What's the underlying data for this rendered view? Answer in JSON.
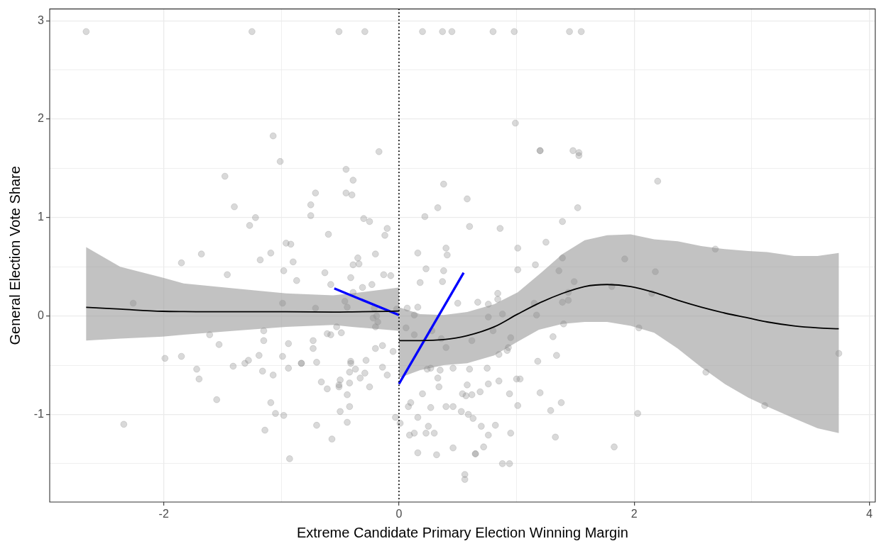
{
  "chart_data": {
    "type": "scatter",
    "xlabel": "Extreme Candidate Primary Election Winning Margin",
    "ylabel": "General Election Vote Share",
    "xlim": [
      -2.97,
      4.05
    ],
    "ylim": [
      -1.89,
      3.12
    ],
    "xticks": [
      -2,
      {
        "value": -1,
        "label": null
      },
      0,
      {
        "value": 1,
        "label": null
      },
      2,
      {
        "value": 3,
        "label": null
      },
      4
    ],
    "yticks": [
      {
        "value": -1.5,
        "label": null
      },
      -1,
      {
        "value": -0.5,
        "label": null
      },
      0,
      {
        "value": 0.5,
        "label": null
      },
      1,
      {
        "value": 1.5,
        "label": null
      },
      2,
      {
        "value": 2.5,
        "label": null
      },
      3
    ],
    "grid": true,
    "legend": false,
    "marker": "circle",
    "ref_lines": [
      {
        "axis": "x",
        "value": 0,
        "color": "#000000",
        "line_style": "dotted"
      }
    ],
    "series": [
      {
        "type": "scatter",
        "color": "#d9d9d9",
        "x": [
          -2.66,
          -1.25,
          -0.51,
          -0.29,
          0.2,
          0.37,
          0.45,
          0.8,
          0.98,
          1.45,
          1.55,
          -1.07,
          -1.01,
          -1.48,
          -0.71,
          -0.75,
          -0.75,
          -1.4,
          -1.22,
          -1.27,
          -0.6,
          -0.96,
          -0.92,
          -1.68,
          -1.09,
          -1.85,
          -1.18,
          -0.9,
          0.99,
          -0.17,
          1.2,
          1.2,
          1.48,
          1.53,
          1.53,
          -0.45,
          -0.39,
          -0.45,
          -0.4,
          0.38,
          0.58,
          0.33,
          1.52,
          0.22,
          -0.3,
          -0.25,
          1.39,
          0.6,
          0.86,
          -0.1,
          -0.12,
          1.25,
          0.4,
          1.01,
          -0.2,
          0.16,
          0.41,
          -0.35,
          -0.34,
          -0.39,
          1.39,
          1.16,
          2.2,
          1.92,
          2.69,
          2.18,
          1.81,
          2.15,
          2.04,
          3.74,
          2.61,
          3.11,
          2.03,
          1.83,
          -1.46,
          -0.98,
          -0.87,
          -0.63,
          -0.58,
          -2.26,
          -0.99,
          -0.71,
          -1.61,
          -1.15,
          -1.15,
          -1.53,
          -0.94,
          -0.73,
          -0.73,
          -0.61,
          -0.58,
          -1.99,
          -1.85,
          -1.19,
          -0.99,
          -1.28,
          -1.31,
          -0.83,
          -0.83,
          -0.7,
          -1.41,
          -1.72,
          -1.7,
          -1.16,
          -1.07,
          -0.94,
          -0.66,
          -0.61,
          -1.55,
          -1.09,
          -1.05,
          -0.98,
          -2.34,
          -1.14,
          -0.7,
          -0.57,
          -0.93,
          -0.41,
          -0.13,
          -0.07,
          -0.31,
          -0.23,
          -0.39,
          -0.46,
          -0.44,
          -0.21,
          -0.02,
          -0.19,
          -0.22,
          -0.18,
          -0.2,
          -0.53,
          -0.49,
          -0.2,
          -0.14,
          -0.05,
          -0.41,
          -0.41,
          -0.28,
          -0.14,
          -0.37,
          -0.42,
          -0.29,
          -0.1,
          -0.33,
          -0.5,
          -0.51,
          -0.51,
          -0.42,
          -0.25,
          -0.44,
          -0.42,
          -0.5,
          -0.03,
          0.01,
          -0.44,
          0.23,
          0.38,
          0.37,
          0.18,
          1.01,
          1.36,
          1.49,
          0.84,
          0.84,
          0.67,
          0.76,
          0.5,
          0.16,
          0.07,
          0.13,
          1.15,
          1.39,
          1.44,
          1.44,
          0.88,
          1.17,
          0.76,
          1.4,
          0.06,
          0.13,
          0.28,
          0.36,
          0.4,
          0.62,
          0.8,
          0.95,
          0.92,
          0.93,
          0.85,
          1.31,
          1.18,
          1.34,
          0.24,
          0.27,
          0.35,
          0.46,
          0.6,
          0.75,
          0.33,
          0.34,
          0.58,
          0.76,
          0.85,
          1.0,
          1.03,
          0.2,
          0.54,
          0.57,
          0.62,
          0.69,
          0.94,
          1.2,
          0.1,
          0.08,
          0.27,
          0.4,
          0.46,
          1.01,
          1.38,
          1.29,
          0.53,
          0.59,
          0.63,
          0.16,
          0.7,
          0.82,
          0.25,
          0.09,
          0.13,
          0.23,
          0.3,
          0.76,
          0.95,
          1.33,
          0.46,
          0.72,
          0.16,
          0.32,
          0.65,
          0.65,
          0.88,
          0.94,
          0.56,
          0.56
        ],
        "values": [
          2.89,
          2.89,
          2.89,
          2.89,
          2.89,
          2.89,
          2.89,
          2.89,
          2.89,
          2.89,
          2.89,
          1.83,
          1.57,
          1.42,
          1.25,
          1.13,
          1.02,
          1.11,
          1.0,
          0.92,
          0.83,
          0.74,
          0.73,
          0.63,
          0.64,
          0.54,
          0.57,
          0.55,
          1.96,
          1.67,
          1.68,
          1.68,
          1.68,
          1.66,
          1.63,
          1.49,
          1.38,
          1.25,
          1.23,
          1.34,
          1.19,
          1.1,
          1.1,
          1.01,
          0.99,
          0.96,
          0.96,
          0.91,
          0.89,
          0.89,
          0.82,
          0.75,
          0.69,
          0.69,
          0.63,
          0.64,
          0.62,
          0.59,
          0.53,
          0.52,
          0.59,
          0.52,
          1.37,
          0.58,
          0.68,
          0.45,
          0.3,
          0.23,
          -0.12,
          -0.38,
          -0.57,
          -0.91,
          -0.99,
          -1.33,
          0.42,
          0.46,
          0.36,
          0.44,
          0.32,
          0.13,
          0.13,
          0.08,
          -0.19,
          -0.15,
          -0.25,
          -0.29,
          -0.28,
          -0.25,
          -0.33,
          -0.18,
          -0.19,
          -0.43,
          -0.41,
          -0.4,
          -0.41,
          -0.45,
          -0.48,
          -0.48,
          -0.48,
          -0.47,
          -0.51,
          -0.54,
          -0.64,
          -0.56,
          -0.6,
          -0.53,
          -0.67,
          -0.74,
          -0.85,
          -0.88,
          -0.99,
          -1.01,
          -1.1,
          -1.16,
          -1.11,
          -1.25,
          -1.45,
          0.39,
          0.42,
          0.41,
          0.29,
          0.32,
          0.24,
          0.15,
          0.09,
          0.08,
          0.07,
          0.0,
          -0.02,
          -0.06,
          -0.11,
          -0.11,
          -0.17,
          -0.33,
          -0.3,
          -0.36,
          -0.46,
          -0.48,
          -0.45,
          -0.52,
          -0.54,
          -0.57,
          -0.58,
          -0.6,
          -0.63,
          -0.65,
          -0.7,
          -0.72,
          -0.68,
          -0.72,
          -0.8,
          -0.92,
          -0.97,
          -1.03,
          -1.09,
          -1.08,
          0.48,
          0.46,
          0.35,
          0.34,
          0.47,
          0.46,
          0.35,
          0.23,
          0.17,
          0.14,
          0.12,
          0.13,
          0.09,
          0.08,
          0.01,
          0.13,
          0.14,
          0.16,
          0.24,
          0.02,
          0.01,
          -0.01,
          -0.08,
          -0.12,
          -0.19,
          -0.15,
          -0.23,
          -0.32,
          -0.25,
          -0.15,
          -0.22,
          -0.35,
          -0.32,
          -0.39,
          -0.21,
          -0.46,
          -0.4,
          -0.54,
          -0.53,
          -0.55,
          -0.53,
          -0.54,
          -0.53,
          -0.63,
          -0.72,
          -0.7,
          -0.69,
          -0.66,
          -0.64,
          -0.64,
          -0.79,
          -0.79,
          -0.81,
          -0.8,
          -0.77,
          -0.79,
          -0.78,
          -0.88,
          -0.92,
          -0.93,
          -0.92,
          -0.92,
          -0.91,
          -0.88,
          -0.96,
          -0.97,
          -1.0,
          -1.04,
          -1.03,
          -1.12,
          -1.11,
          -1.12,
          -1.21,
          -1.19,
          -1.19,
          -1.19,
          -1.21,
          -1.19,
          -1.23,
          -1.34,
          -1.33,
          -1.39,
          -1.41,
          -1.4,
          -1.4,
          -1.5,
          -1.5,
          -1.61,
          -1.66
        ]
      },
      {
        "type": "line",
        "color": "#000000",
        "marker": "none",
        "x": [
          -2.66,
          -2.37,
          -2.01,
          -1.83,
          -1.4,
          -0.96,
          -0.56,
          -0.4,
          0
        ],
        "values": [
          0.088,
          0.07,
          0.048,
          0.045,
          0.043,
          0.043,
          0.04,
          0.042,
          0.05
        ],
        "lower": [
          -0.25,
          -0.23,
          -0.21,
          -0.19,
          -0.15,
          -0.11,
          -0.09,
          -0.11,
          -0.15
        ],
        "upper": [
          0.7,
          0.5,
          0.39,
          0.33,
          0.28,
          0.23,
          0.21,
          0.23,
          0.29
        ]
      },
      {
        "type": "line",
        "color": "#000000",
        "marker": "none",
        "x": [
          0,
          0.18,
          0.38,
          0.58,
          0.81,
          1.01,
          1.19,
          1.39,
          1.58,
          1.77,
          1.97,
          2.17,
          2.37,
          2.57,
          2.77,
          2.97,
          3.13,
          3.36,
          3.56,
          3.74
        ],
        "values": [
          -0.25,
          -0.25,
          -0.24,
          -0.2,
          -0.11,
          0.02,
          0.13,
          0.23,
          0.3,
          0.32,
          0.3,
          0.24,
          0.16,
          0.09,
          0.03,
          -0.02,
          -0.06,
          -0.1,
          -0.12,
          -0.13
        ],
        "lower": [
          -0.63,
          -0.55,
          -0.5,
          -0.48,
          -0.4,
          -0.26,
          -0.14,
          -0.08,
          -0.06,
          -0.06,
          -0.1,
          -0.17,
          -0.33,
          -0.52,
          -0.69,
          -0.83,
          -0.92,
          -1.04,
          -1.14,
          -1.19
        ],
        "upper": [
          0.09,
          0.02,
          0.01,
          0.04,
          0.12,
          0.24,
          0.42,
          0.63,
          0.77,
          0.82,
          0.83,
          0.78,
          0.76,
          0.71,
          0.68,
          0.66,
          0.65,
          0.61,
          0.61,
          0.64
        ]
      },
      {
        "type": "line",
        "color": "#0000ff",
        "marker": "none",
        "x": [
          -0.55,
          0
        ],
        "values": [
          0.28,
          0.01
        ]
      },
      {
        "type": "line",
        "color": "#0000ff",
        "marker": "none",
        "x": [
          0,
          0.55
        ],
        "values": [
          -0.69,
          0.44
        ]
      }
    ]
  }
}
